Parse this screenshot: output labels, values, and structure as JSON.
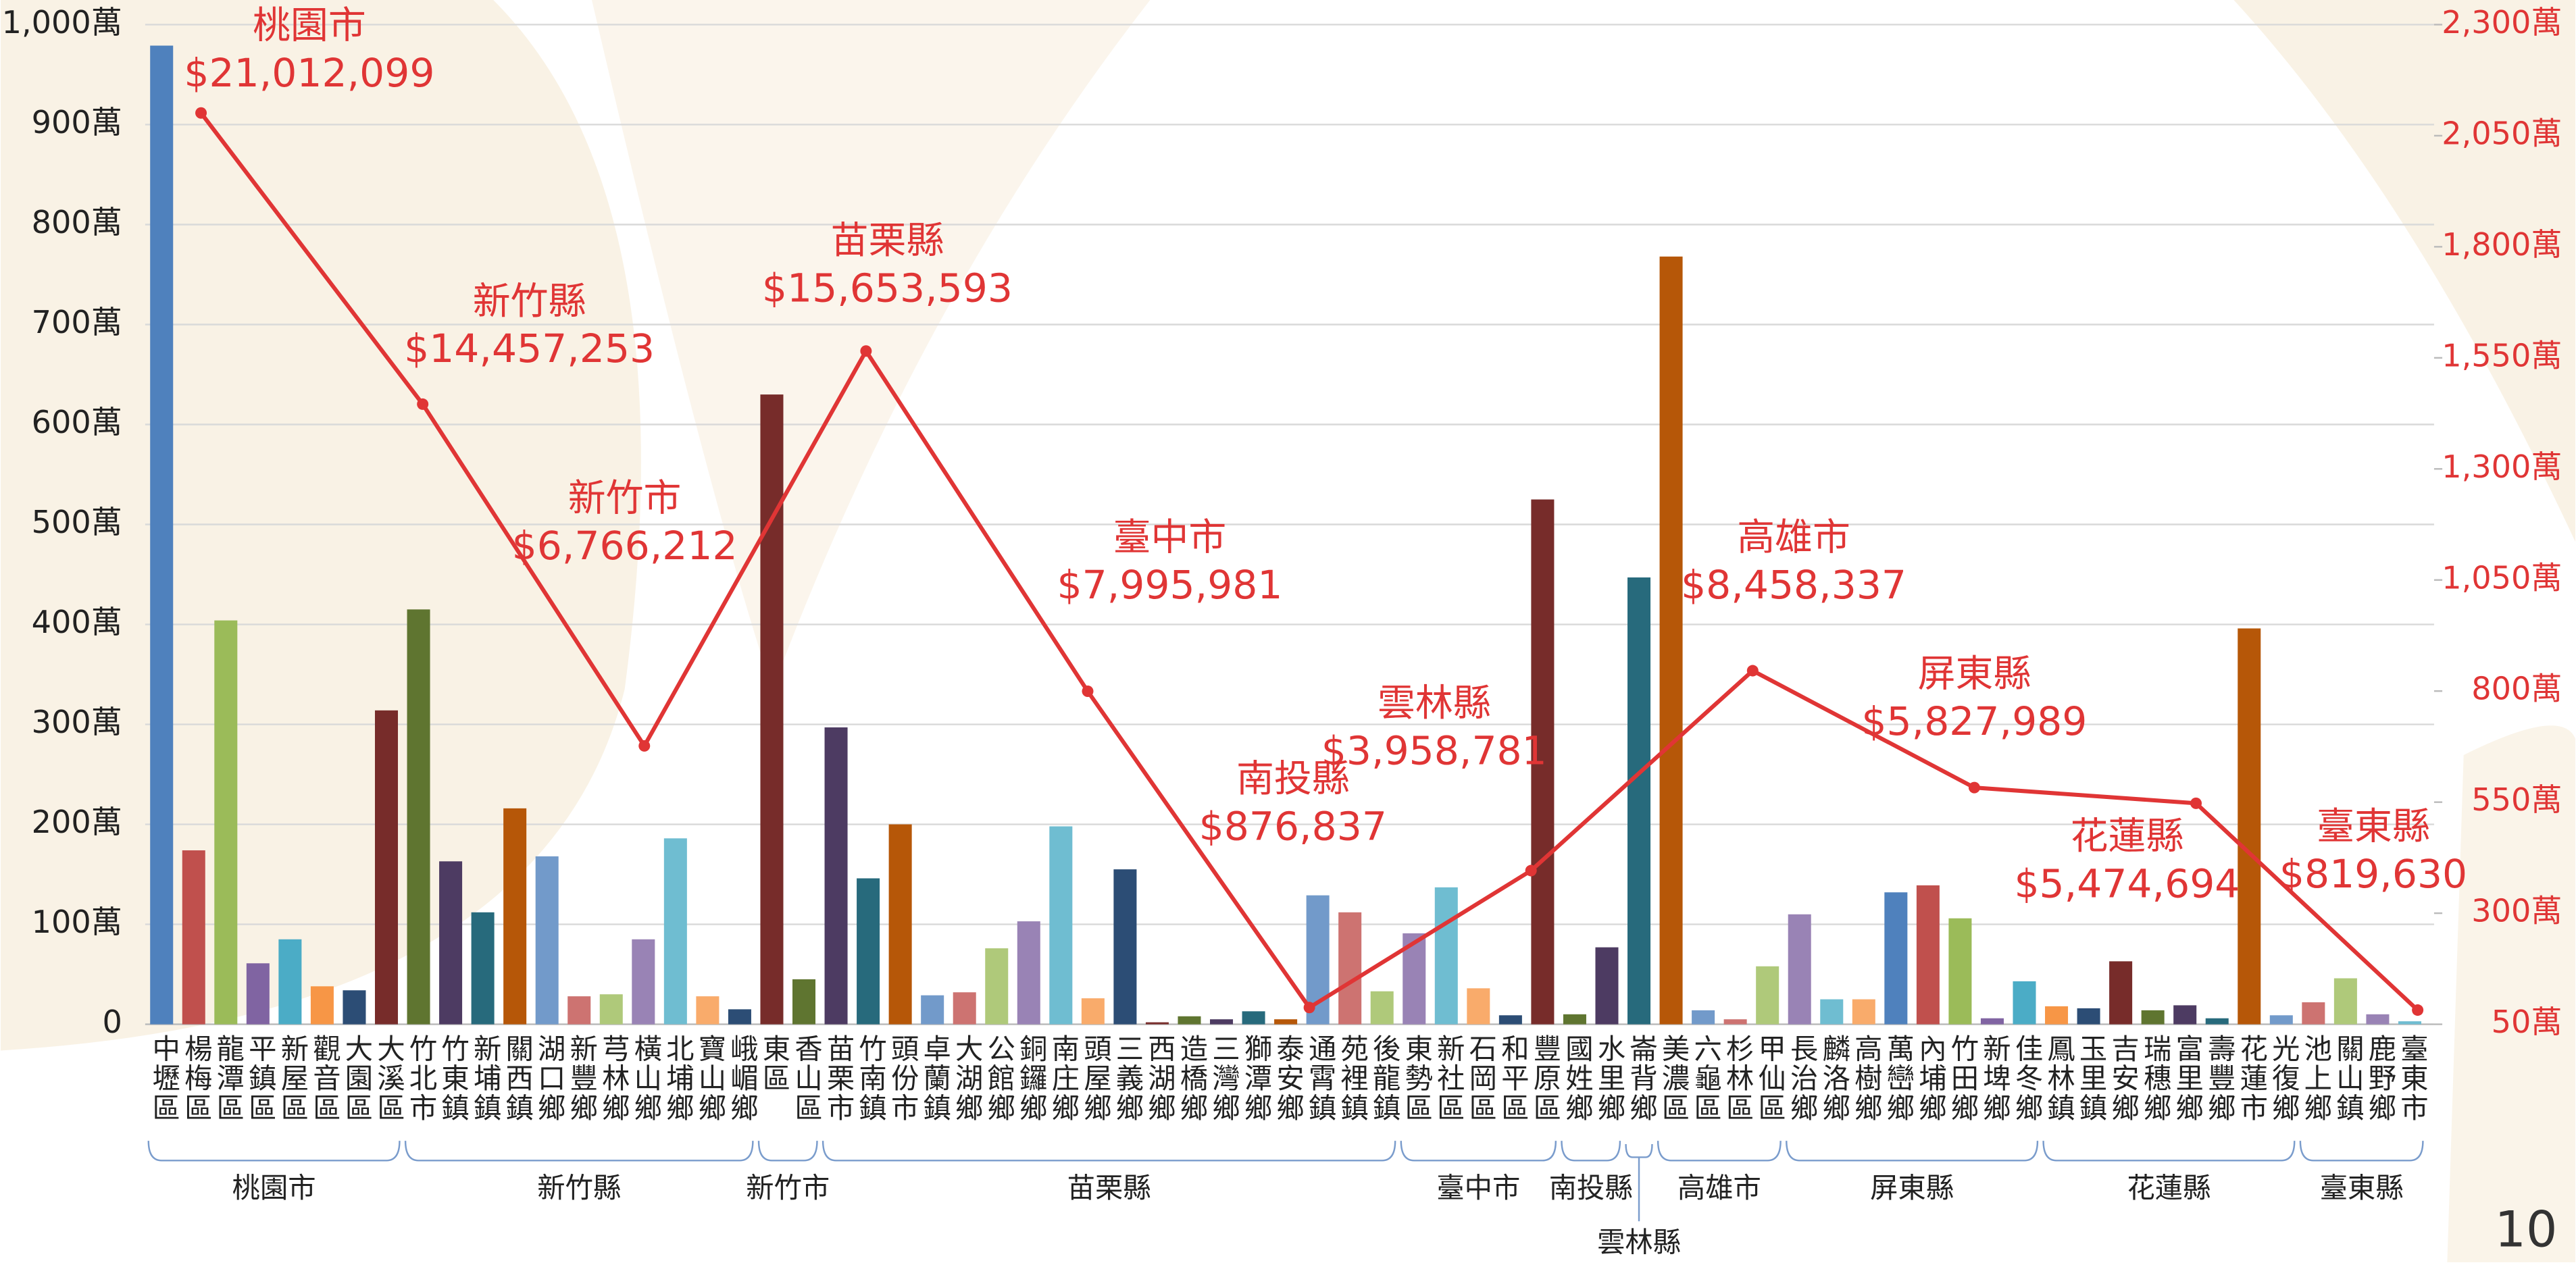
{
  "chart_data": {
    "type": "bar",
    "ylim": [
      0,
      1000
    ],
    "yticks": [
      0,
      {
        "value": 100,
        "label": "100萬"
      },
      {
        "value": 200,
        "label": "200萬"
      },
      {
        "value": 300,
        "label": "300萬"
      },
      {
        "value": 400,
        "label": "400萬"
      },
      {
        "value": 500,
        "label": "500萬"
      },
      {
        "value": 600,
        "label": "600萬"
      },
      {
        "value": 700,
        "label": "700萬"
      },
      {
        "value": 800,
        "label": "800萬"
      },
      {
        "value": 900,
        "label": "900萬"
      },
      {
        "value": 1000,
        "label": "1,000萬"
      }
    ],
    "y2lim": [
      50,
      2300
    ],
    "y2ticks": [
      {
        "value": 50,
        "label": "50萬"
      },
      {
        "value": 300,
        "label": "300萬"
      },
      {
        "value": 550,
        "label": "550萬"
      },
      {
        "value": 800,
        "label": "800萬"
      },
      {
        "value": 1050,
        "label": "1,050萬"
      },
      {
        "value": 1300,
        "label": "1,300萬"
      },
      {
        "value": 1550,
        "label": "1,550萬"
      },
      {
        "value": 1800,
        "label": "1,800萬"
      },
      {
        "value": 2050,
        "label": "2,050萬"
      },
      {
        "value": 2300,
        "label": "2,300萬"
      }
    ],
    "grid": true,
    "palette": {
      "base": [
        "#4f81bd",
        "#c0504d",
        "#9bbb59",
        "#8064a2",
        "#4bacc6",
        "#f79646"
      ],
      "dark": [
        "#2c4d75",
        "#772c2a",
        "#5f7530",
        "#4d3b62",
        "#276a7c",
        "#b65708"
      ],
      "light": [
        "#729aca",
        "#cd7371",
        "#afc97a",
        "#9983b5",
        "#6fbdd1",
        "#f9ab6b"
      ]
    },
    "groups": [
      {
        "name": "桃園市",
        "categories": [
          "中壢區",
          "楊梅區",
          "龍潭區",
          "平鎮區",
          "新屋區",
          "觀音區",
          "大園區",
          "大溪區"
        ],
        "values": [
          979,
          174,
          404,
          61,
          85,
          38,
          34,
          314
        ]
      },
      {
        "name": "新竹縣",
        "categories": [
          "竹北市",
          "竹東鎮",
          "新埔鎮",
          "關西鎮",
          "湖口鄉",
          "新豐鄉",
          "芎林鄉",
          "橫山鄉",
          "北埔鄉",
          "寶山鄉",
          "峨嵋鄉"
        ],
        "values": [
          415,
          163,
          112,
          216,
          168,
          28,
          30,
          85,
          186,
          28,
          15
        ]
      },
      {
        "name": "新竹市",
        "categories": [
          "東區",
          "香山區"
        ],
        "values": [
          630,
          45
        ]
      },
      {
        "name": "苗栗縣",
        "categories": [
          "苗栗市",
          "竹南鎮",
          "頭份市",
          "卓蘭鎮",
          "大湖鄉",
          "公館鄉",
          "銅鑼鄉",
          "南庄鄉",
          "頭屋鄉",
          "三義鄉",
          "西湖鄉",
          "造橋鄉",
          "三灣鄉",
          "獅潭鄉",
          "泰安鄉",
          "通霄鎮",
          "苑裡鎮",
          "後龍鎮"
        ],
        "values": [
          297,
          146,
          200,
          29,
          32,
          76,
          103,
          198,
          26,
          155,
          2,
          8,
          5,
          13,
          5,
          129,
          112,
          33
        ]
      },
      {
        "name": "臺中市",
        "categories": [
          "東勢區",
          "新社區",
          "石岡區",
          "和平區",
          "豐原區"
        ],
        "values": [
          91,
          137,
          36,
          9,
          525
        ]
      },
      {
        "name": "南投縣",
        "categories": [
          "國姓鄉",
          "水里鄉"
        ],
        "values": [
          10,
          77
        ]
      },
      {
        "name": "雲林縣",
        "categories": [
          "崙背鄉"
        ],
        "values": [
          447
        ]
      },
      {
        "name": "高雄市",
        "categories": [
          "美濃區",
          "六龜區",
          "杉林區",
          "甲仙區"
        ],
        "values": [
          768,
          14,
          5,
          58
        ]
      },
      {
        "name": "屏東縣",
        "categories": [
          "長治鄉",
          "麟洛鄉",
          "高樹鄉",
          "萬巒鄉",
          "內埔鄉",
          "竹田鄉",
          "新埤鄉",
          "佳冬鄉"
        ],
        "values": [
          110,
          25,
          25,
          132,
          139,
          106,
          6,
          43
        ]
      },
      {
        "name": "花蓮縣",
        "categories": [
          "鳳林鎮",
          "玉里鎮",
          "吉安鄉",
          "瑞穗鄉",
          "富里鄉",
          "壽豐鄉",
          "花蓮市",
          "光復鄉"
        ],
        "values": [
          18,
          16,
          63,
          14,
          19,
          6,
          396,
          9
        ]
      },
      {
        "name": "臺東縣",
        "categories": [
          "池上鄉",
          "關山鎮",
          "鹿野鄉",
          "臺東市"
        ],
        "values": [
          22,
          46,
          10,
          3
        ]
      }
    ],
    "series": [
      {
        "type": "line",
        "axis": "y2",
        "color": "#e03535",
        "categories": [
          "桃園市",
          "新竹縣",
          "新竹市",
          "苗栗縣",
          "臺中市",
          "南投縣",
          "雲林縣",
          "高雄市",
          "屏東縣",
          "花蓮縣",
          "臺東縣"
        ],
        "values": [
          2101.2099,
          1445.7253,
          676.6212,
          1565.3593,
          799.5981,
          87.6837,
          395.8781,
          845.8337,
          582.7989,
          547.4694,
          81.963
        ],
        "value_labels": [
          "$21,012,099",
          "$14,457,253",
          "$6,766,212",
          "$15,653,593",
          "$7,995,981",
          "$876,837",
          "$3,958,781",
          "$8,458,337",
          "$5,827,989",
          "$5,474,694",
          "$819,630"
        ]
      }
    ]
  },
  "page_number": "10"
}
